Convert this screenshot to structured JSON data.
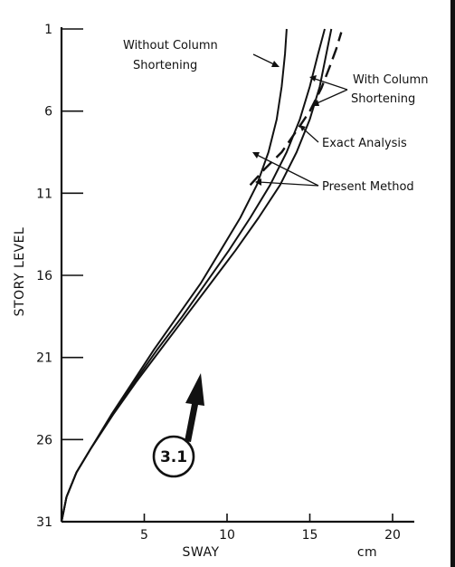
{
  "chart_data": {
    "type": "line",
    "xlabel": "SWAY",
    "xunit": "cm",
    "ylabel": "STORY LEVEL",
    "xlim": [
      0,
      20
    ],
    "ylim": [
      31,
      1
    ],
    "x_ticks": [
      "5",
      "10",
      "15",
      "20"
    ],
    "y_ticks": [
      "1",
      "6",
      "11",
      "16",
      "21",
      "26",
      "31"
    ],
    "x_tick_values": [
      5,
      10,
      15,
      20
    ],
    "y_tick_values": [
      1,
      6,
      11,
      16,
      21,
      26,
      31
    ],
    "series": [
      {
        "style": "solid",
        "points": [
          [
            0,
            31
          ],
          [
            0.3,
            29.5
          ],
          [
            0.9,
            28
          ],
          [
            1.8,
            26.5
          ],
          [
            3,
            24.5
          ],
          [
            4.3,
            22.5
          ],
          [
            5.6,
            20.5
          ],
          [
            7,
            18.5
          ],
          [
            8.4,
            16.5
          ],
          [
            9.6,
            14.5
          ],
          [
            10.8,
            12.5
          ],
          [
            11.8,
            10.5
          ],
          [
            12.5,
            8.5
          ],
          [
            13,
            6.5
          ],
          [
            13.3,
            4.5
          ],
          [
            13.5,
            2.5
          ],
          [
            13.6,
            1
          ]
        ]
      },
      {
        "style": "solid",
        "points": [
          [
            0,
            31
          ],
          [
            0.3,
            29.5
          ],
          [
            0.9,
            28
          ],
          [
            1.8,
            26.5
          ],
          [
            3.1,
            24.5
          ],
          [
            4.4,
            22.5
          ],
          [
            5.8,
            20.5
          ],
          [
            7.3,
            18.5
          ],
          [
            8.7,
            16.5
          ],
          [
            10.1,
            14.5
          ],
          [
            11.4,
            12.5
          ],
          [
            12.6,
            10.5
          ],
          [
            13.6,
            8.5
          ],
          [
            14.4,
            6.5
          ],
          [
            15,
            4.5
          ],
          [
            15.5,
            2.5
          ],
          [
            15.9,
            1
          ]
        ]
      },
      {
        "style": "solid",
        "points": [
          [
            0,
            31
          ],
          [
            0.3,
            29.5
          ],
          [
            0.9,
            28
          ],
          [
            1.8,
            26.5
          ],
          [
            3.1,
            24.5
          ],
          [
            4.5,
            22.5
          ],
          [
            6,
            20.5
          ],
          [
            7.5,
            18.5
          ],
          [
            9,
            16.5
          ],
          [
            10.5,
            14.5
          ],
          [
            11.9,
            12.5
          ],
          [
            13.2,
            10.5
          ],
          [
            14.2,
            8.5
          ],
          [
            15,
            6.5
          ],
          [
            15.6,
            4.5
          ],
          [
            16,
            2.5
          ],
          [
            16.3,
            1
          ]
        ]
      },
      {
        "style": "dashed",
        "points": [
          [
            11.4,
            10.5
          ],
          [
            12.3,
            9.5
          ],
          [
            13.3,
            8.5
          ],
          [
            14.2,
            7.2
          ],
          [
            15,
            6
          ],
          [
            15.7,
            4.6
          ],
          [
            16.2,
            3.3
          ],
          [
            16.6,
            2.2
          ],
          [
            16.9,
            1.2
          ]
        ]
      }
    ],
    "annotations": [
      {
        "key": "without",
        "lines": [
          "Without Column",
          "Shortening"
        ]
      },
      {
        "key": "with",
        "lines": [
          "With Column",
          "Shortening"
        ]
      },
      {
        "key": "exact",
        "lines": [
          "Exact Analysis"
        ]
      },
      {
        "key": "present",
        "lines": [
          "Present Method"
        ]
      }
    ],
    "badge": "3.1"
  }
}
